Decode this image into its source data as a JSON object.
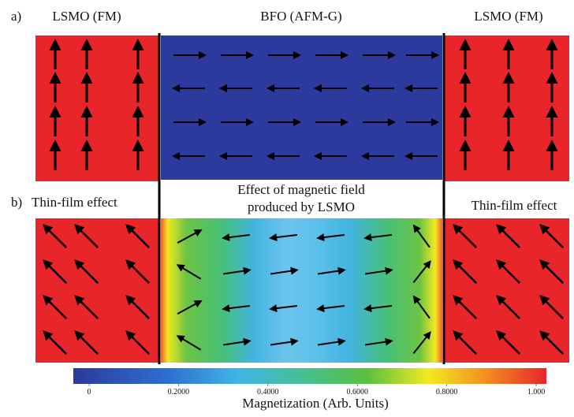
{
  "panel_a": {
    "label": "a)",
    "left": "LSMO (FM)",
    "middle": "BFO (AFM-G)",
    "right": "LSMO (FM)"
  },
  "panel_b": {
    "label": "b)",
    "left": "Thin-film effect",
    "middle_line1": "Effect of magnetic field",
    "middle_line2": "produced by LSMO",
    "right": "Thin-film effect"
  },
  "colorbar": {
    "title": "Magnetization (Arb. Units)",
    "lim": [
      0,
      1
    ],
    "ticks": [
      0,
      {
        "value": 0.2,
        "label": "0.2000"
      },
      {
        "value": 0.4,
        "label": "0.4000"
      },
      {
        "value": 0.6,
        "label": "0.6000"
      },
      {
        "value": 0.8,
        "label": "0.8000"
      },
      {
        "value": 1,
        "label": "1.000"
      }
    ]
  }
}
